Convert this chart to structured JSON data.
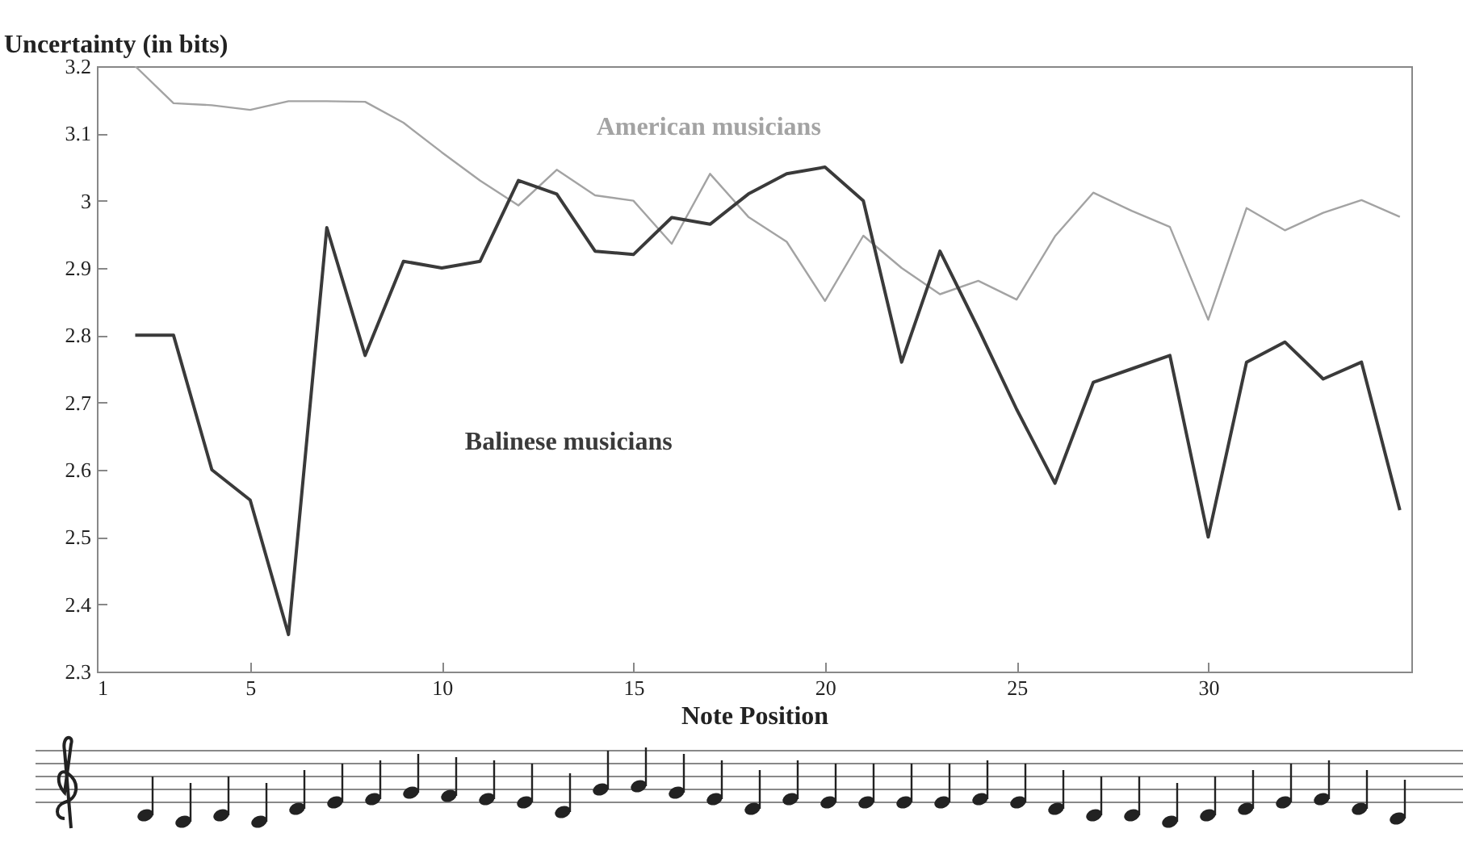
{
  "chart_data": {
    "type": "line",
    "ylabel": "Uncertainty (in bits)",
    "xlabel": "Note Position",
    "x": [
      2,
      3,
      4,
      5,
      6,
      7,
      8,
      9,
      10,
      11,
      12,
      13,
      14,
      15,
      16,
      17,
      18,
      19,
      20,
      21,
      22,
      23,
      24,
      25,
      26,
      27,
      28,
      29,
      30,
      31,
      32,
      33,
      34,
      35
    ],
    "series": [
      {
        "name": "American musicians",
        "color": "#a3a3a3",
        "values": [
          3.2,
          3.145,
          3.142,
          3.135,
          3.148,
          3.148,
          3.147,
          3.116,
          3.072,
          3.03,
          2.993,
          3.046,
          3.008,
          3.0,
          2.936,
          3.04,
          2.976,
          2.939,
          2.851,
          2.948,
          2.9,
          2.861,
          2.881,
          2.853,
          2.947,
          3.012,
          2.985,
          2.961,
          2.823,
          2.989,
          2.956,
          2.982,
          3.001,
          2.976
        ]
      },
      {
        "name": "Balinese musicians",
        "color": "#3a3a3a",
        "values": [
          2.8,
          2.8,
          2.6,
          2.555,
          2.355,
          2.96,
          2.77,
          2.91,
          2.9,
          2.91,
          3.03,
          3.01,
          2.925,
          2.92,
          2.975,
          2.965,
          3.01,
          3.04,
          3.05,
          3.0,
          2.76,
          2.925,
          2.81,
          2.69,
          2.58,
          2.73,
          2.75,
          2.77,
          2.5,
          2.76,
          2.79,
          2.735,
          2.76,
          2.54
        ]
      }
    ],
    "xlim": [
      1,
      35.3
    ],
    "xticks": [
      1,
      5,
      10,
      15,
      20,
      25,
      30
    ],
    "ylim": [
      2.3,
      3.2
    ],
    "yticks": [
      2.3,
      2.4,
      2.5,
      2.6,
      2.7,
      2.8,
      2.9,
      3,
      3.1,
      3.2
    ],
    "grid": false,
    "legend": false,
    "marker": "none",
    "line_style": "solid"
  }
}
